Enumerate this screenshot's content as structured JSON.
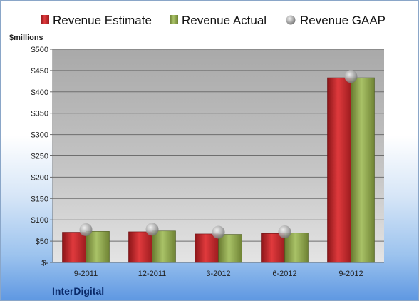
{
  "chart_data": {
    "type": "bar",
    "ylabel": "$millions",
    "ylim": [
      0,
      500
    ],
    "yticks": [
      "$-",
      "$50",
      "$100",
      "$150",
      "$200",
      "$250",
      "$300",
      "$350",
      "$400",
      "$450",
      "$500"
    ],
    "categories": [
      "9-2011",
      "12-2011",
      "3-2012",
      "6-2012",
      "9-2012"
    ],
    "series": [
      {
        "name": "Revenue Estimate",
        "kind": "bar",
        "color": "#c0262a",
        "values": [
          71,
          72,
          67,
          68,
          433
        ]
      },
      {
        "name": "Revenue Actual",
        "kind": "bar",
        "color": "#8fa84e",
        "values": [
          73,
          74,
          66,
          69,
          433
        ]
      },
      {
        "name": "Revenue GAAP",
        "kind": "marker",
        "color": "#a8a8a8",
        "values": [
          77,
          78,
          71,
          72,
          436
        ]
      }
    ],
    "legend_position": "top",
    "grid": true
  },
  "company": "InterDigital"
}
